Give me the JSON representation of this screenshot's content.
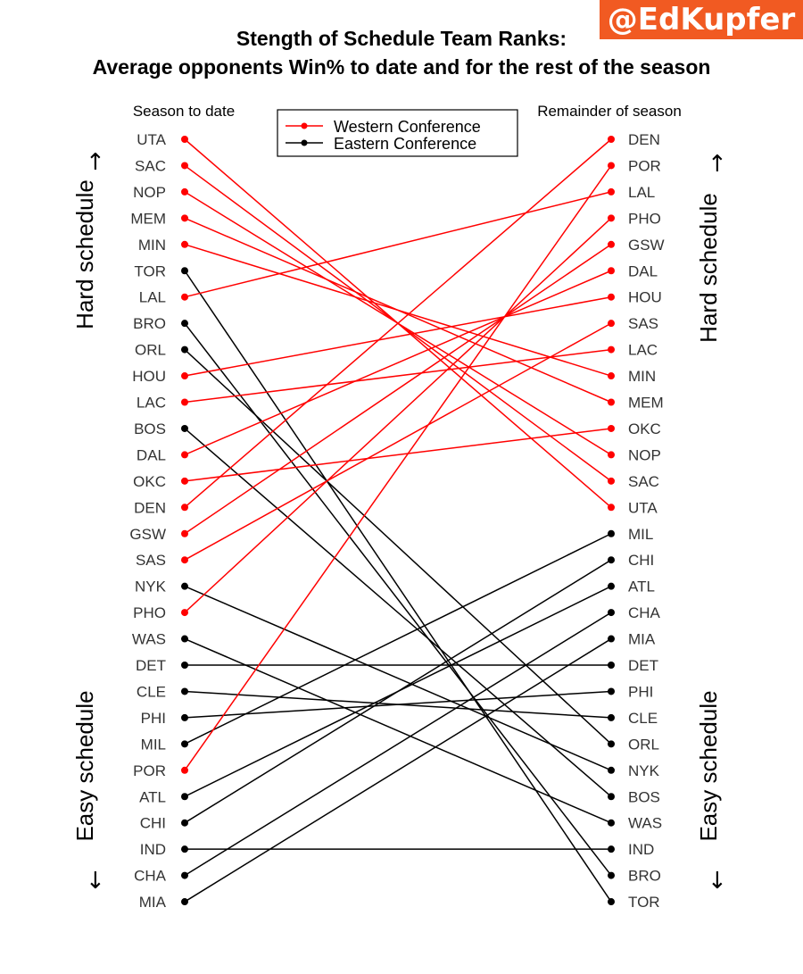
{
  "branding": {
    "handle": "@EdKupfer"
  },
  "chart_data": {
    "type": "slope",
    "title": "Stength of Schedule Team Ranks:",
    "subtitle": "Average opponents Win% to date and for the rest of the season",
    "left_axis_label": "Season to date",
    "right_axis_label": "Remainder of season",
    "side_labels": {
      "top": "Hard schedule",
      "bottom": "Easy schedule",
      "top_arrow": "↑",
      "bottom_arrow": "↓"
    },
    "legend": {
      "placement": "top-center",
      "entries": [
        {
          "name": "Western Conference",
          "color": "#ff0000"
        },
        {
          "name": "Eastern Conference",
          "color": "#000000"
        }
      ]
    },
    "colors": {
      "West": "#ff0000",
      "East": "#000000"
    },
    "season_to_date": [
      "UTA",
      "SAC",
      "NOP",
      "MEM",
      "MIN",
      "TOR",
      "LAL",
      "BRO",
      "ORL",
      "HOU",
      "LAC",
      "BOS",
      "DAL",
      "OKC",
      "DEN",
      "GSW",
      "SAS",
      "NYK",
      "PHO",
      "WAS",
      "DET",
      "CLE",
      "PHI",
      "MIL",
      "POR",
      "ATL",
      "CHI",
      "IND",
      "CHA",
      "MIA"
    ],
    "remainder_of_season": [
      "DEN",
      "POR",
      "LAL",
      "PHO",
      "GSW",
      "DAL",
      "HOU",
      "SAS",
      "LAC",
      "MIN",
      "MEM",
      "OKC",
      "NOP",
      "SAC",
      "UTA",
      "MIL",
      "CHI",
      "ATL",
      "CHA",
      "MIA",
      "DET",
      "PHI",
      "CLE",
      "ORL",
      "NYK",
      "BOS",
      "WAS",
      "IND",
      "BRO",
      "TOR"
    ],
    "west_teams": [
      "UTA",
      "SAC",
      "NOP",
      "MEM",
      "MIN",
      "LAL",
      "HOU",
      "LAC",
      "DAL",
      "OKC",
      "DEN",
      "GSW",
      "SAS",
      "PHO",
      "POR"
    ]
  }
}
